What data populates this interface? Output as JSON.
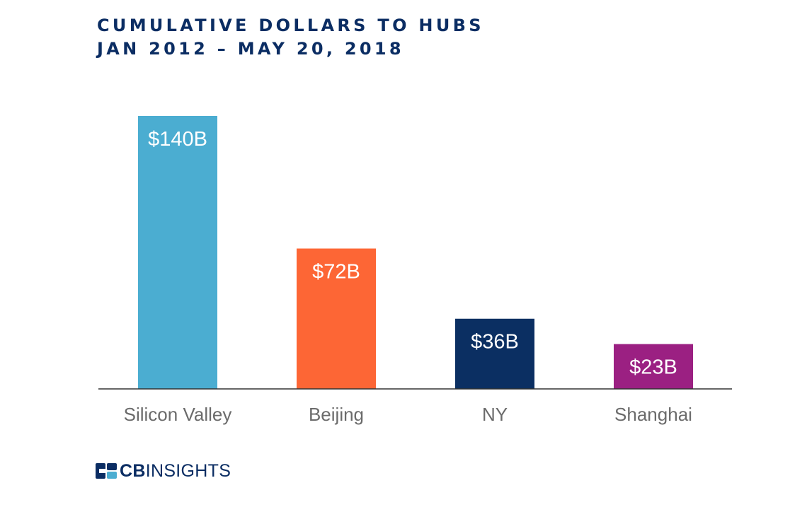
{
  "chart_data": {
    "type": "bar",
    "title": "CUMULATIVE DOLLARS TO HUBS",
    "subtitle": "JAN 2012 – MAY 20, 2018",
    "categories": [
      "Silicon Valley",
      "Beijing",
      "NY",
      "Shanghai"
    ],
    "values": [
      140,
      72,
      36,
      23
    ],
    "value_labels": [
      "$140B",
      "$72B",
      "$36B",
      "$23B"
    ],
    "unit": "USD billions",
    "colors": [
      "#4badd1",
      "#fd6635",
      "#0b2f62",
      "#9b2082"
    ],
    "ylim": [
      0,
      140
    ],
    "grid": false,
    "legend": "none"
  },
  "branding": {
    "logo_text_bold": "CB",
    "logo_text_regular": "INSIGHTS",
    "logo_color": "#0b2d63",
    "logo_accent": "#4badd1"
  }
}
